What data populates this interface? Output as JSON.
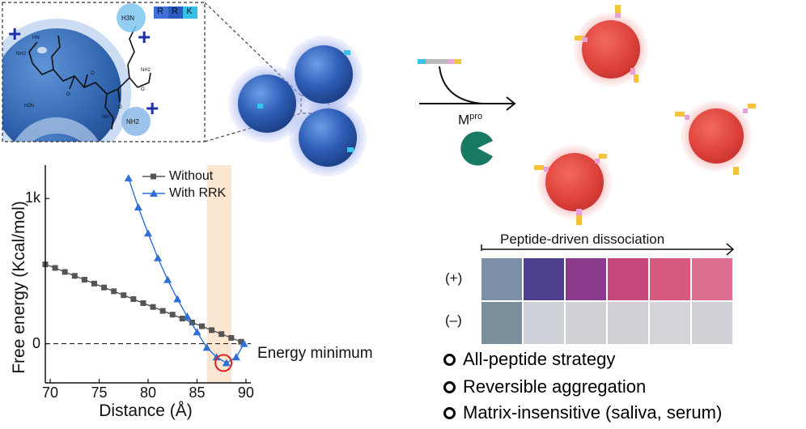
{
  "inset": {
    "peptide_chips": [
      "R",
      "R",
      "K"
    ],
    "plus_sign": "+"
  },
  "reaction": {
    "enzyme_label": "M",
    "enzyme_superscript": "pro"
  },
  "strip": {
    "title": "Peptide-driven dissociation",
    "row_labels": [
      "(+)",
      "(–)"
    ],
    "plus_colors": [
      "#7d8fa6",
      "#4e3f8f",
      "#8a3b8e",
      "#c4487a",
      "#d65a80",
      "#dc6f8f"
    ],
    "minus_colors": [
      "#7a8e9c",
      "#cfd1d8",
      "#d0d1d7",
      "#cfcfd5",
      "#d3d3d8",
      "#cfd0d5"
    ]
  },
  "bullets": [
    "All-peptide strategy",
    "Reversible aggregation",
    "Matrix-insensitive (saliva, serum)"
  ],
  "chart_data": {
    "type": "line",
    "xlabel": "Distance (Å)",
    "ylabel": "Free energy (Kcal/mol)",
    "xlim": [
      69.5,
      90.5
    ],
    "ylim": [
      -270,
      1230
    ],
    "x_ticks": [
      "70",
      "75",
      "80",
      "85",
      "90"
    ],
    "y_ticks": [
      "0",
      "1k"
    ],
    "series": [
      {
        "name": "Without",
        "color": "#555555",
        "marker": "square",
        "x": [
          69.5,
          70.5,
          71.5,
          72.5,
          73.5,
          74.5,
          75.5,
          76.5,
          77.5,
          78.5,
          79.5,
          80.5,
          81.5,
          82.5,
          83.5,
          84.5,
          85.5,
          86.5,
          87.5,
          88.5,
          89.5
        ],
        "y": [
          546,
          522,
          494,
          467,
          441,
          414,
          387,
          361,
          334,
          307,
          279,
          253,
          226,
          200,
          173,
          146,
          120,
          93,
          66,
          40,
          13
        ]
      },
      {
        "name": "With RRK",
        "color": "#2f6fd6",
        "marker": "triangle",
        "x": [
          78,
          79,
          80,
          81,
          82,
          83,
          84,
          85,
          86,
          87,
          88,
          89,
          89.8
        ],
        "y": [
          1140,
          940,
          760,
          590,
          440,
          307,
          187,
          80,
          -27,
          -93,
          -133,
          -93,
          0
        ]
      }
    ],
    "reference_line": {
      "y": 0,
      "style": "dashed"
    },
    "highlight_band": {
      "x": [
        86,
        88.5
      ],
      "color": "#fbe6d2"
    },
    "annotation": {
      "text": "Energy minimum",
      "x": 87.7,
      "y": -133
    },
    "legend": "top-right",
    "grid": false
  }
}
